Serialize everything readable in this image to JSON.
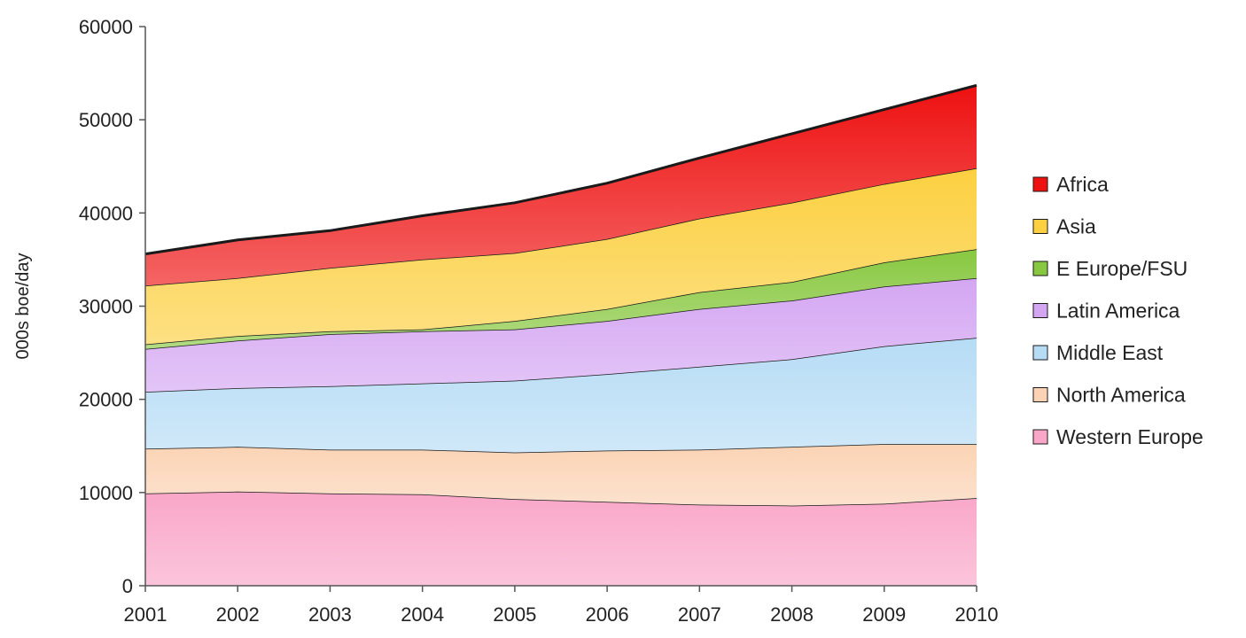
{
  "chart_data": {
    "type": "area",
    "stacked": true,
    "title": "",
    "xlabel": "",
    "ylabel": "000s boe/day",
    "x": [
      "2001",
      "2002",
      "2003",
      "2004",
      "2005",
      "2006",
      "2007",
      "2008",
      "2009",
      "2010"
    ],
    "ylim": [
      0,
      60000
    ],
    "yticks": [
      "0",
      "10000",
      "20000",
      "30000",
      "40000",
      "50000",
      "60000"
    ],
    "grid": false,
    "legend_position": "right",
    "series": [
      {
        "name": "Western Europe",
        "color": "#f9a6c8",
        "values": [
          9900,
          10100,
          9900,
          9800,
          9300,
          9000,
          8700,
          8600,
          8800,
          9400
        ]
      },
      {
        "name": "North America",
        "color": "#fbd3b4",
        "values": [
          4800,
          4800,
          4700,
          4800,
          5000,
          5500,
          5900,
          6300,
          6400,
          5800
        ]
      },
      {
        "name": "Middle East",
        "color": "#b6dcf5",
        "values": [
          6100,
          6300,
          6800,
          7100,
          7700,
          8200,
          8900,
          9400,
          10500,
          11400
        ]
      },
      {
        "name": "Latin America",
        "color": "#d4a6f2",
        "values": [
          4600,
          5100,
          5600,
          5600,
          5500,
          5700,
          6200,
          6300,
          6400,
          6400
        ]
      },
      {
        "name": "E Europe/FSU",
        "color": "#88c840",
        "values": [
          500,
          500,
          300,
          200,
          900,
          1300,
          1800,
          2000,
          2600,
          3100
        ]
      },
      {
        "name": "Asia",
        "color": "#fcd040",
        "values": [
          6300,
          6200,
          6800,
          7500,
          7300,
          7500,
          7900,
          8500,
          8400,
          8700
        ]
      },
      {
        "name": "Africa",
        "color": "#ee1111",
        "values": [
          3400,
          4100,
          4000,
          4700,
          5400,
          6000,
          6500,
          7400,
          8000,
          8900
        ]
      }
    ]
  }
}
